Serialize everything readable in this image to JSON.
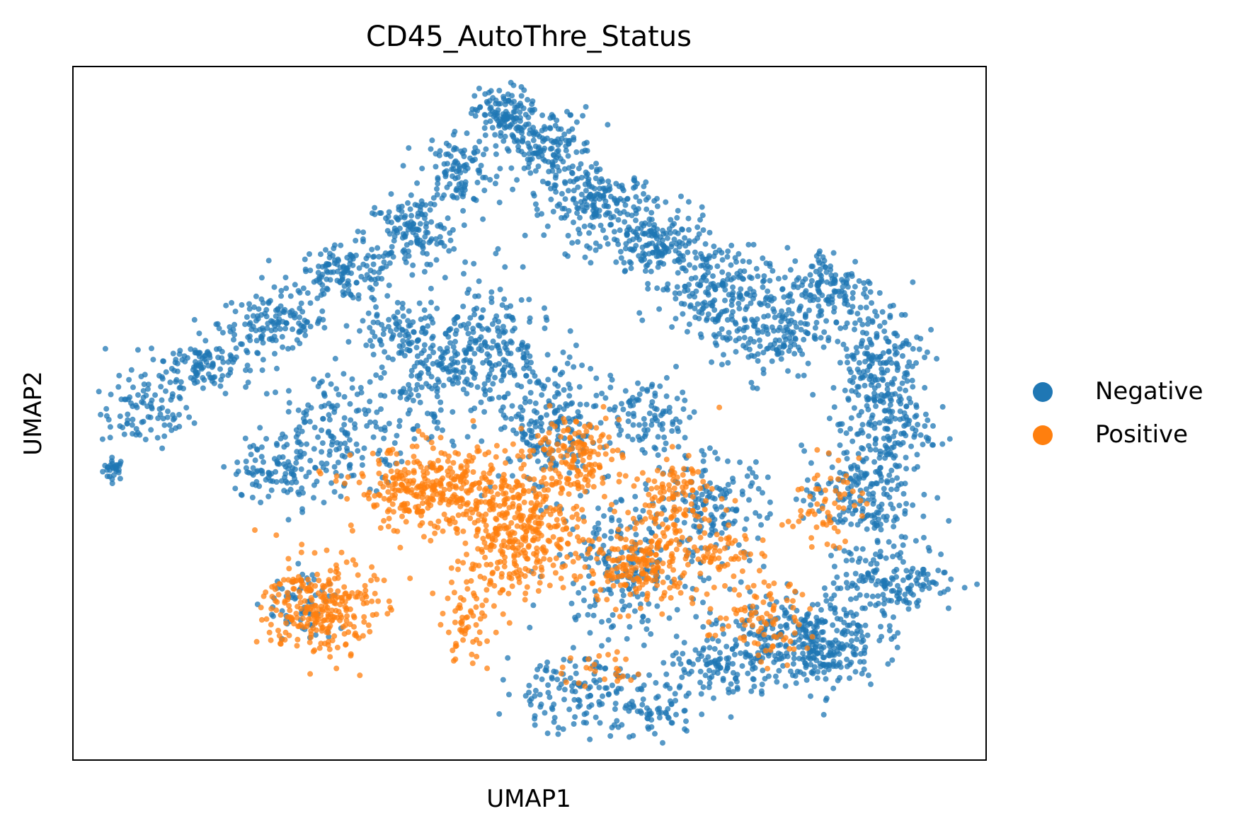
{
  "chart_data": {
    "type": "scatter",
    "title": "CD45_AutoThre_Status",
    "xlabel": "UMAP1",
    "ylabel": "UMAP2",
    "xticks": false,
    "yticks": false,
    "grid": false,
    "xlim": [
      0,
      100
    ],
    "ylim": [
      0,
      100
    ],
    "legend_position": "right",
    "series": [
      {
        "name": "Negative",
        "color": "#1f77b4",
        "clusters": [
          {
            "cx": 4.5,
            "cy": 42,
            "sx": 0.6,
            "sy": 0.8,
            "n": 30
          },
          {
            "cx": 8,
            "cy": 50,
            "sx": 2.5,
            "sy": 2.5,
            "n": 90
          },
          {
            "cx": 14,
            "cy": 57,
            "sx": 3,
            "sy": 2,
            "n": 120
          },
          {
            "cx": 22,
            "cy": 63,
            "sx": 3,
            "sy": 2,
            "n": 130
          },
          {
            "cx": 30,
            "cy": 70,
            "sx": 3,
            "sy": 2,
            "n": 140
          },
          {
            "cx": 37,
            "cy": 76,
            "sx": 2.5,
            "sy": 2.5,
            "n": 130
          },
          {
            "cx": 42,
            "cy": 85,
            "sx": 2,
            "sy": 3,
            "n": 110
          },
          {
            "cx": 47,
            "cy": 93,
            "sx": 1.5,
            "sy": 2,
            "n": 120
          },
          {
            "cx": 52,
            "cy": 88,
            "sx": 2.5,
            "sy": 3,
            "n": 160
          },
          {
            "cx": 58,
            "cy": 80,
            "sx": 3,
            "sy": 2.5,
            "n": 180
          },
          {
            "cx": 64,
            "cy": 74,
            "sx": 3,
            "sy": 2.5,
            "n": 170
          },
          {
            "cx": 70,
            "cy": 68,
            "sx": 3,
            "sy": 3,
            "n": 170
          },
          {
            "cx": 76,
            "cy": 62,
            "sx": 3,
            "sy": 3.5,
            "n": 170
          },
          {
            "cx": 83,
            "cy": 68,
            "sx": 2.5,
            "sy": 3,
            "n": 140
          },
          {
            "cx": 88,
            "cy": 58,
            "sx": 2.5,
            "sy": 4,
            "n": 170
          },
          {
            "cx": 89,
            "cy": 48,
            "sx": 2.5,
            "sy": 4,
            "n": 160
          },
          {
            "cx": 86,
            "cy": 38,
            "sx": 3,
            "sy": 3.5,
            "n": 170
          },
          {
            "cx": 90,
            "cy": 26,
            "sx": 3.5,
            "sy": 2.5,
            "n": 160
          },
          {
            "cx": 80,
            "cy": 18,
            "sx": 4,
            "sy": 3,
            "n": 240
          },
          {
            "cx": 71,
            "cy": 13,
            "sx": 3,
            "sy": 2.5,
            "n": 120
          },
          {
            "cx": 60,
            "cy": 28,
            "sx": 3.5,
            "sy": 5,
            "n": 200
          },
          {
            "cx": 52,
            "cy": 48,
            "sx": 3,
            "sy": 5,
            "n": 200
          },
          {
            "cx": 46,
            "cy": 60,
            "sx": 3,
            "sy": 5,
            "n": 180
          },
          {
            "cx": 40,
            "cy": 55,
            "sx": 3,
            "sy": 4,
            "n": 150
          },
          {
            "cx": 30,
            "cy": 48,
            "sx": 4,
            "sy": 4,
            "n": 160
          },
          {
            "cx": 23,
            "cy": 42,
            "sx": 3,
            "sy": 2.5,
            "n": 110
          },
          {
            "cx": 36,
            "cy": 62,
            "sx": 2.5,
            "sy": 2,
            "n": 80
          },
          {
            "cx": 55,
            "cy": 10,
            "sx": 4,
            "sy": 3,
            "n": 140
          },
          {
            "cx": 63,
            "cy": 6,
            "sx": 2,
            "sy": 1.5,
            "n": 50
          },
          {
            "cx": 70,
            "cy": 36,
            "sx": 3,
            "sy": 4,
            "n": 150
          },
          {
            "cx": 63,
            "cy": 50,
            "sx": 3,
            "sy": 3,
            "n": 100
          },
          {
            "cx": 82,
            "cy": 15,
            "sx": 3,
            "sy": 2.5,
            "n": 110
          },
          {
            "cx": 25,
            "cy": 22,
            "sx": 2,
            "sy": 3,
            "n": 60
          }
        ]
      },
      {
        "name": "Positive",
        "color": "#ff7f0e",
        "clusters": [
          {
            "cx": 39,
            "cy": 39,
            "sx": 4,
            "sy": 3,
            "n": 320
          },
          {
            "cx": 49,
            "cy": 33,
            "sx": 3.5,
            "sy": 4.5,
            "n": 380
          },
          {
            "cx": 55,
            "cy": 44,
            "sx": 2.5,
            "sy": 3,
            "n": 150
          },
          {
            "cx": 27,
            "cy": 22,
            "sx": 3,
            "sy": 3.5,
            "n": 280
          },
          {
            "cx": 62,
            "cy": 28,
            "sx": 3,
            "sy": 3,
            "n": 200
          },
          {
            "cx": 66,
            "cy": 38,
            "sx": 2.5,
            "sy": 3,
            "n": 110
          },
          {
            "cx": 43,
            "cy": 20,
            "sx": 1.5,
            "sy": 3,
            "n": 60
          },
          {
            "cx": 75,
            "cy": 20,
            "sx": 3,
            "sy": 3,
            "n": 90
          },
          {
            "cx": 82,
            "cy": 37,
            "sx": 2,
            "sy": 3,
            "n": 60
          },
          {
            "cx": 58,
            "cy": 13,
            "sx": 2,
            "sy": 1.5,
            "n": 25
          },
          {
            "cx": 72,
            "cy": 30,
            "sx": 2,
            "sy": 2,
            "n": 50
          }
        ]
      }
    ]
  }
}
